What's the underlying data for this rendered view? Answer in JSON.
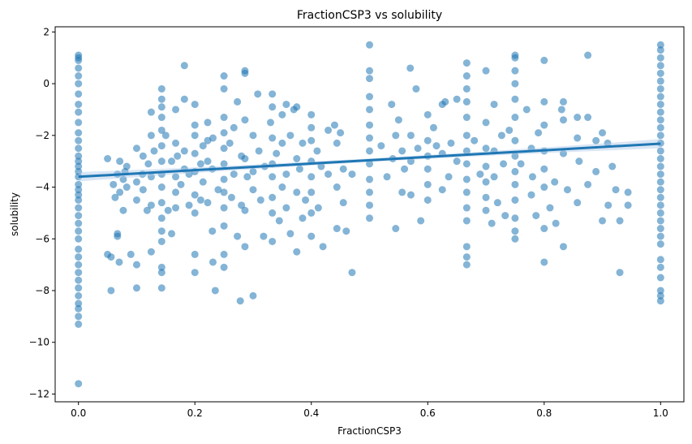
{
  "chart_data": {
    "type": "scatter",
    "title": "FractionCSP3 vs solubility",
    "xlabel": "FractionCSP3",
    "ylabel": "solubility",
    "xlim": [
      -0.04,
      1.04
    ],
    "ylim": [
      -12.3,
      2.2
    ],
    "xticks": [
      0.0,
      0.2,
      0.4,
      0.6,
      0.8,
      1.0
    ],
    "xtick_labels": [
      "0.0",
      "0.2",
      "0.4",
      "0.6",
      "0.8",
      "1.0"
    ],
    "yticks": [
      2,
      0,
      -2,
      -4,
      -6,
      -8,
      -10,
      -12
    ],
    "ytick_labels": [
      "2",
      "0",
      "−2",
      "−4",
      "−6",
      "−8",
      "−10",
      "−12"
    ],
    "grid": false,
    "regression": {
      "x_range": [
        0.0,
        1.0
      ],
      "intercept": -3.6,
      "slope": 1.28,
      "ci_band_halfwidth_edges": 0.18,
      "ci_band_halfwidth_center": 0.07
    },
    "colors": {
      "point": "#1f77b4",
      "line": "#1f77b4",
      "band": "#aec7e8"
    },
    "points": [
      [
        0.0,
        1.1
      ],
      [
        0.0,
        1.0
      ],
      [
        0.0,
        0.9
      ],
      [
        0.0,
        0.6
      ],
      [
        0.0,
        0.3
      ],
      [
        0.0,
        0.0
      ],
      [
        0.0,
        -0.4
      ],
      [
        0.0,
        -0.8
      ],
      [
        0.0,
        -1.1
      ],
      [
        0.0,
        -1.5
      ],
      [
        0.0,
        -1.9
      ],
      [
        0.0,
        -2.2
      ],
      [
        0.0,
        -2.5
      ],
      [
        0.0,
        -2.8
      ],
      [
        0.0,
        -3.0
      ],
      [
        0.0,
        -3.2
      ],
      [
        0.0,
        -3.4
      ],
      [
        0.0,
        -3.6
      ],
      [
        0.0,
        -3.9
      ],
      [
        0.0,
        -4.1
      ],
      [
        0.0,
        -4.3
      ],
      [
        0.0,
        -4.5
      ],
      [
        0.0,
        -4.8
      ],
      [
        0.0,
        -5.1
      ],
      [
        0.0,
        -5.4
      ],
      [
        0.0,
        -5.7
      ],
      [
        0.0,
        -6.0
      ],
      [
        0.0,
        -6.4
      ],
      [
        0.0,
        -6.7
      ],
      [
        0.0,
        -7.0
      ],
      [
        0.0,
        -7.3
      ],
      [
        0.0,
        -7.6
      ],
      [
        0.0,
        -7.9
      ],
      [
        0.0,
        -8.2
      ],
      [
        0.0,
        -8.5
      ],
      [
        0.0,
        -8.7
      ],
      [
        0.0,
        -9.0
      ],
      [
        0.0,
        -9.3
      ],
      [
        0.0,
        -11.6
      ],
      [
        0.05,
        -2.9
      ],
      [
        0.05,
        -6.6
      ],
      [
        0.056,
        -6.7
      ],
      [
        0.056,
        -8.0
      ],
      [
        0.06,
        -3.9
      ],
      [
        0.063,
        -4.4
      ],
      [
        0.067,
        -3.5
      ],
      [
        0.067,
        -5.8
      ],
      [
        0.067,
        -5.9
      ],
      [
        0.07,
        -6.9
      ],
      [
        0.071,
        -4.2
      ],
      [
        0.071,
        -3.0
      ],
      [
        0.077,
        -3.7
      ],
      [
        0.077,
        -4.9
      ],
      [
        0.08,
        -3.4
      ],
      [
        0.083,
        -3.2
      ],
      [
        0.083,
        -4.0
      ],
      [
        0.09,
        -6.6
      ],
      [
        0.1,
        -2.5
      ],
      [
        0.1,
        -3.8
      ],
      [
        0.1,
        -4.5
      ],
      [
        0.1,
        -7.0
      ],
      [
        0.1,
        -7.9
      ],
      [
        0.11,
        -3.5
      ],
      [
        0.111,
        -2.8
      ],
      [
        0.111,
        -4.1
      ],
      [
        0.118,
        -4.9
      ],
      [
        0.12,
        -3.1
      ],
      [
        0.125,
        -1.1
      ],
      [
        0.125,
        -2.0
      ],
      [
        0.125,
        -3.6
      ],
      [
        0.125,
        -4.7
      ],
      [
        0.125,
        -6.5
      ],
      [
        0.13,
        -2.6
      ],
      [
        0.143,
        -0.2
      ],
      [
        0.143,
        -0.6
      ],
      [
        0.143,
        -0.9
      ],
      [
        0.143,
        -1.3
      ],
      [
        0.143,
        -1.8
      ],
      [
        0.143,
        -2.4
      ],
      [
        0.143,
        -3.0
      ],
      [
        0.143,
        -3.5
      ],
      [
        0.143,
        -4.0
      ],
      [
        0.143,
        -4.6
      ],
      [
        0.143,
        -5.2
      ],
      [
        0.143,
        -5.7
      ],
      [
        0.143,
        -6.1
      ],
      [
        0.143,
        -7.1
      ],
      [
        0.143,
        -7.3
      ],
      [
        0.143,
        -7.9
      ],
      [
        0.15,
        -2.0
      ],
      [
        0.154,
        -4.9
      ],
      [
        0.16,
        -3.0
      ],
      [
        0.16,
        -5.8
      ],
      [
        0.167,
        -1.0
      ],
      [
        0.167,
        -2.3
      ],
      [
        0.167,
        -3.6
      ],
      [
        0.167,
        -4.2
      ],
      [
        0.167,
        -4.8
      ],
      [
        0.17,
        -2.8
      ],
      [
        0.176,
        -3.9
      ],
      [
        0.182,
        0.7
      ],
      [
        0.182,
        -0.6
      ],
      [
        0.182,
        -2.6
      ],
      [
        0.182,
        -3.3
      ],
      [
        0.19,
        -4.7
      ],
      [
        0.19,
        -3.5
      ],
      [
        0.2,
        -0.8
      ],
      [
        0.2,
        -1.6
      ],
      [
        0.2,
        -2.0
      ],
      [
        0.2,
        -2.7
      ],
      [
        0.2,
        -3.4
      ],
      [
        0.2,
        -4.3
      ],
      [
        0.2,
        -5.0
      ],
      [
        0.2,
        -6.6
      ],
      [
        0.2,
        -7.3
      ],
      [
        0.21,
        -3.1
      ],
      [
        0.21,
        -4.5
      ],
      [
        0.214,
        -2.4
      ],
      [
        0.214,
        -3.8
      ],
      [
        0.222,
        -1.5
      ],
      [
        0.222,
        -2.2
      ],
      [
        0.222,
        -3.0
      ],
      [
        0.222,
        -4.6
      ],
      [
        0.23,
        -3.3
      ],
      [
        0.23,
        -5.7
      ],
      [
        0.231,
        -2.1
      ],
      [
        0.231,
        -6.9
      ],
      [
        0.235,
        -8.0
      ],
      [
        0.24,
        -4.1
      ],
      [
        0.25,
        0.3
      ],
      [
        0.25,
        -0.2
      ],
      [
        0.25,
        -1.3
      ],
      [
        0.25,
        -1.9
      ],
      [
        0.25,
        -2.5
      ],
      [
        0.25,
        -3.1
      ],
      [
        0.25,
        -3.7
      ],
      [
        0.25,
        -4.2
      ],
      [
        0.25,
        -4.8
      ],
      [
        0.25,
        -5.5
      ],
      [
        0.25,
        -6.6
      ],
      [
        0.25,
        -7.1
      ],
      [
        0.26,
        -2.3
      ],
      [
        0.263,
        -4.4
      ],
      [
        0.267,
        -1.7
      ],
      [
        0.267,
        -3.5
      ],
      [
        0.273,
        -0.7
      ],
      [
        0.273,
        -5.9
      ],
      [
        0.278,
        -8.4
      ],
      [
        0.28,
        -2.8
      ],
      [
        0.28,
        -4.7
      ],
      [
        0.286,
        0.5
      ],
      [
        0.286,
        0.4
      ],
      [
        0.286,
        -1.4
      ],
      [
        0.286,
        -2.9
      ],
      [
        0.286,
        -4.9
      ],
      [
        0.286,
        -6.3
      ],
      [
        0.29,
        -3.6
      ],
      [
        0.3,
        -2.0
      ],
      [
        0.3,
        -3.4
      ],
      [
        0.3,
        -4.1
      ],
      [
        0.3,
        -8.2
      ],
      [
        0.308,
        -0.4
      ],
      [
        0.31,
        -2.6
      ],
      [
        0.313,
        -4.5
      ],
      [
        0.318,
        -5.9
      ],
      [
        0.32,
        -3.2
      ],
      [
        0.33,
        -1.5
      ],
      [
        0.333,
        -0.4
      ],
      [
        0.333,
        -0.9
      ],
      [
        0.333,
        -2.1
      ],
      [
        0.333,
        -3.1
      ],
      [
        0.333,
        -3.6
      ],
      [
        0.333,
        -4.4
      ],
      [
        0.333,
        -5.0
      ],
      [
        0.333,
        -6.1
      ],
      [
        0.34,
        -2.7
      ],
      [
        0.345,
        -5.3
      ],
      [
        0.35,
        -1.2
      ],
      [
        0.35,
        -2.3
      ],
      [
        0.35,
        -4.0
      ],
      [
        0.357,
        -0.8
      ],
      [
        0.357,
        -3.5
      ],
      [
        0.357,
        -4.8
      ],
      [
        0.364,
        -2.0
      ],
      [
        0.364,
        -5.8
      ],
      [
        0.37,
        -1.0
      ],
      [
        0.375,
        -0.9
      ],
      [
        0.375,
        -2.9
      ],
      [
        0.375,
        -4.2
      ],
      [
        0.375,
        -6.5
      ],
      [
        0.38,
        -3.3
      ],
      [
        0.385,
        -2.3
      ],
      [
        0.385,
        -5.2
      ],
      [
        0.39,
        -4.5
      ],
      [
        0.4,
        -1.2
      ],
      [
        0.4,
        -1.7
      ],
      [
        0.4,
        -2.2
      ],
      [
        0.4,
        -3.0
      ],
      [
        0.4,
        -3.6
      ],
      [
        0.4,
        -4.2
      ],
      [
        0.4,
        -5.0
      ],
      [
        0.4,
        -5.9
      ],
      [
        0.41,
        -2.6
      ],
      [
        0.412,
        -4.8
      ],
      [
        0.417,
        -3.2
      ],
      [
        0.42,
        -6.3
      ],
      [
        0.429,
        -1.8
      ],
      [
        0.429,
        -3.5
      ],
      [
        0.44,
        -1.6
      ],
      [
        0.444,
        -2.3
      ],
      [
        0.444,
        -4.0
      ],
      [
        0.444,
        -5.6
      ],
      [
        0.45,
        -1.9
      ],
      [
        0.455,
        -3.3
      ],
      [
        0.455,
        -4.6
      ],
      [
        0.46,
        -5.7
      ],
      [
        0.47,
        -7.3
      ],
      [
        0.47,
        -3.5
      ],
      [
        0.5,
        1.5
      ],
      [
        0.5,
        0.5
      ],
      [
        0.5,
        0.2
      ],
      [
        0.5,
        -0.5
      ],
      [
        0.5,
        -1.0
      ],
      [
        0.5,
        -1.6
      ],
      [
        0.5,
        -2.1
      ],
      [
        0.5,
        -2.6
      ],
      [
        0.5,
        -3.1
      ],
      [
        0.5,
        -3.7
      ],
      [
        0.5,
        -4.2
      ],
      [
        0.5,
        -4.7
      ],
      [
        0.5,
        -5.2
      ],
      [
        0.52,
        -2.4
      ],
      [
        0.53,
        -3.6
      ],
      [
        0.538,
        -0.8
      ],
      [
        0.54,
        -2.9
      ],
      [
        0.545,
        -2.0
      ],
      [
        0.545,
        -5.6
      ],
      [
        0.55,
        -1.4
      ],
      [
        0.556,
        -2.6
      ],
      [
        0.556,
        -4.2
      ],
      [
        0.56,
        -3.3
      ],
      [
        0.57,
        0.6
      ],
      [
        0.571,
        -2.0
      ],
      [
        0.571,
        -3.0
      ],
      [
        0.571,
        -4.3
      ],
      [
        0.58,
        -0.2
      ],
      [
        0.583,
        -2.5
      ],
      [
        0.588,
        -5.3
      ],
      [
        0.6,
        -1.2
      ],
      [
        0.6,
        -2.2
      ],
      [
        0.6,
        -2.8
      ],
      [
        0.6,
        -3.3
      ],
      [
        0.6,
        -3.9
      ],
      [
        0.6,
        -4.5
      ],
      [
        0.61,
        -1.7
      ],
      [
        0.615,
        -2.4
      ],
      [
        0.625,
        -0.8
      ],
      [
        0.625,
        -2.7
      ],
      [
        0.625,
        -4.1
      ],
      [
        0.63,
        -0.7
      ],
      [
        0.636,
        -3.6
      ],
      [
        0.64,
        -2.3
      ],
      [
        0.65,
        -0.6
      ],
      [
        0.65,
        -3.0
      ],
      [
        0.667,
        0.8
      ],
      [
        0.667,
        0.3
      ],
      [
        0.667,
        -0.2
      ],
      [
        0.667,
        -0.7
      ],
      [
        0.667,
        -1.3
      ],
      [
        0.667,
        -2.0
      ],
      [
        0.667,
        -2.6
      ],
      [
        0.667,
        -3.1
      ],
      [
        0.667,
        -3.7
      ],
      [
        0.667,
        -4.2
      ],
      [
        0.667,
        -4.8
      ],
      [
        0.667,
        -5.3
      ],
      [
        0.667,
        -6.3
      ],
      [
        0.667,
        -6.7
      ],
      [
        0.667,
        -7.0
      ],
      [
        0.68,
        -2.2
      ],
      [
        0.69,
        -3.5
      ],
      [
        0.7,
        0.5
      ],
      [
        0.7,
        -1.5
      ],
      [
        0.7,
        -2.5
      ],
      [
        0.7,
        -3.2
      ],
      [
        0.7,
        -3.8
      ],
      [
        0.7,
        -4.4
      ],
      [
        0.7,
        -4.9
      ],
      [
        0.71,
        -5.4
      ],
      [
        0.714,
        -0.8
      ],
      [
        0.714,
        -2.6
      ],
      [
        0.714,
        -3.6
      ],
      [
        0.72,
        -4.6
      ],
      [
        0.727,
        -2.0
      ],
      [
        0.73,
        -3.1
      ],
      [
        0.733,
        -5.1
      ],
      [
        0.74,
        -1.8
      ],
      [
        0.75,
        1.1
      ],
      [
        0.75,
        1.0
      ],
      [
        0.75,
        0.5
      ],
      [
        0.75,
        0.0
      ],
      [
        0.75,
        -0.6
      ],
      [
        0.75,
        -1.3
      ],
      [
        0.75,
        -2.2
      ],
      [
        0.75,
        -2.8
      ],
      [
        0.75,
        -3.4
      ],
      [
        0.75,
        -3.9
      ],
      [
        0.75,
        -4.5
      ],
      [
        0.75,
        -5.2
      ],
      [
        0.75,
        -5.7
      ],
      [
        0.75,
        -6.0
      ],
      [
        0.76,
        -3.1
      ],
      [
        0.77,
        -1.0
      ],
      [
        0.778,
        -2.5
      ],
      [
        0.778,
        -4.3
      ],
      [
        0.78,
        -3.6
      ],
      [
        0.786,
        -5.1
      ],
      [
        0.79,
        -1.9
      ],
      [
        0.8,
        0.9
      ],
      [
        0.8,
        -0.7
      ],
      [
        0.8,
        -1.6
      ],
      [
        0.8,
        -2.6
      ],
      [
        0.8,
        -3.3
      ],
      [
        0.8,
        -4.0
      ],
      [
        0.8,
        -5.6
      ],
      [
        0.8,
        -6.9
      ],
      [
        0.81,
        -4.8
      ],
      [
        0.818,
        -3.8
      ],
      [
        0.82,
        -5.4
      ],
      [
        0.83,
        -1.0
      ],
      [
        0.833,
        -0.7
      ],
      [
        0.833,
        -1.4
      ],
      [
        0.833,
        -2.7
      ],
      [
        0.833,
        -6.3
      ],
      [
        0.84,
        -4.1
      ],
      [
        0.857,
        -1.3
      ],
      [
        0.857,
        -2.1
      ],
      [
        0.857,
        -4.6
      ],
      [
        0.86,
        -3.0
      ],
      [
        0.875,
        1.1
      ],
      [
        0.875,
        -1.3
      ],
      [
        0.875,
        -3.9
      ],
      [
        0.889,
        -2.2
      ],
      [
        0.889,
        -3.4
      ],
      [
        0.9,
        -1.9
      ],
      [
        0.9,
        -5.3
      ],
      [
        0.909,
        -2.3
      ],
      [
        0.91,
        -4.7
      ],
      [
        0.917,
        -3.2
      ],
      [
        0.923,
        -4.1
      ],
      [
        0.93,
        -7.3
      ],
      [
        0.93,
        -5.3
      ],
      [
        0.944,
        -4.2
      ],
      [
        0.944,
        -4.7
      ],
      [
        1.0,
        1.5
      ],
      [
        1.0,
        1.3
      ],
      [
        1.0,
        1.0
      ],
      [
        1.0,
        0.7
      ],
      [
        1.0,
        0.4
      ],
      [
        1.0,
        0.1
      ],
      [
        1.0,
        -0.2
      ],
      [
        1.0,
        -0.5
      ],
      [
        1.0,
        -0.8
      ],
      [
        1.0,
        -1.1
      ],
      [
        1.0,
        -1.4
      ],
      [
        1.0,
        -1.7
      ],
      [
        1.0,
        -2.0
      ],
      [
        1.0,
        -2.3
      ],
      [
        1.0,
        -2.6
      ],
      [
        1.0,
        -2.9
      ],
      [
        1.0,
        -3.2
      ],
      [
        1.0,
        -3.5
      ],
      [
        1.0,
        -3.8
      ],
      [
        1.0,
        -4.1
      ],
      [
        1.0,
        -4.4
      ],
      [
        1.0,
        -4.7
      ],
      [
        1.0,
        -5.0
      ],
      [
        1.0,
        -5.3
      ],
      [
        1.0,
        -5.6
      ],
      [
        1.0,
        -5.9
      ],
      [
        1.0,
        -6.2
      ],
      [
        1.0,
        -6.8
      ],
      [
        1.0,
        -7.1
      ],
      [
        1.0,
        -7.5
      ],
      [
        1.0,
        -8.0
      ],
      [
        1.0,
        -8.2
      ],
      [
        1.0,
        -8.4
      ]
    ]
  }
}
